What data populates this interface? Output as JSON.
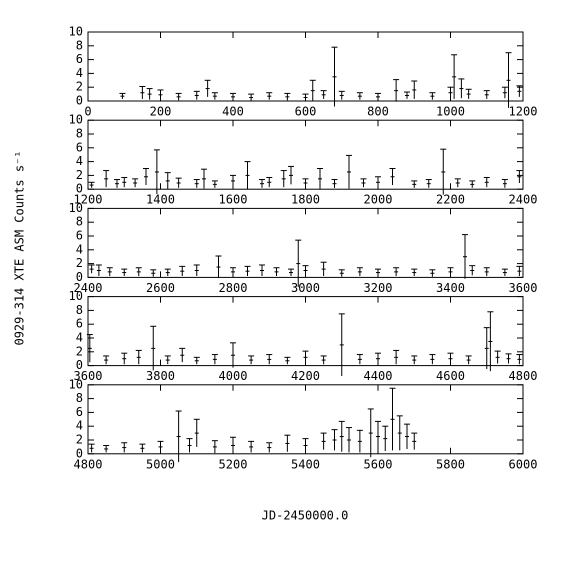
{
  "ylabel": "0929-314 XTE ASM Counts s⁻¹",
  "xlabel": "JD-2450000.0",
  "chart_data": [
    {
      "type": "errorbar",
      "xlim": [
        0,
        1200
      ],
      "ylim": [
        0,
        10
      ],
      "xticks": [
        0,
        200,
        400,
        600,
        800,
        1000,
        1200
      ],
      "yticks": [
        0,
        2,
        4,
        6,
        8,
        10
      ],
      "x": [
        95,
        150,
        170,
        200,
        250,
        300,
        330,
        350,
        400,
        450,
        500,
        550,
        600,
        620,
        650,
        680,
        700,
        750,
        800,
        850,
        880,
        900,
        950,
        1000,
        1010,
        1030,
        1050,
        1100,
        1150,
        1160,
        1190
      ],
      "values": [
        0.7,
        1.2,
        1.0,
        0.9,
        0.6,
        0.8,
        1.8,
        0.7,
        0.6,
        0.5,
        0.7,
        0.6,
        0.5,
        1.5,
        0.9,
        3.5,
        0.8,
        0.7,
        0.6,
        1.5,
        0.8,
        1.6,
        0.7,
        1.2,
        3.5,
        1.8,
        1.0,
        0.9,
        1.2,
        3.0,
        1.4
      ],
      "errors": [
        0.4,
        0.9,
        0.8,
        0.7,
        0.5,
        0.6,
        1.2,
        0.5,
        0.5,
        0.5,
        0.5,
        0.5,
        0.5,
        1.5,
        0.6,
        4.3,
        0.6,
        0.5,
        0.5,
        1.6,
        0.5,
        1.3,
        0.5,
        0.8,
        3.2,
        1.4,
        0.7,
        0.6,
        0.8,
        4.0,
        0.8
      ]
    },
    {
      "type": "errorbar",
      "xlim": [
        1200,
        2400
      ],
      "ylim": [
        0,
        10
      ],
      "xticks": [
        1200,
        1400,
        1600,
        1800,
        2000,
        2200,
        2400
      ],
      "yticks": [
        0,
        2,
        4,
        6,
        8,
        10
      ],
      "x": [
        1210,
        1250,
        1280,
        1300,
        1330,
        1360,
        1390,
        1420,
        1450,
        1500,
        1520,
        1550,
        1600,
        1640,
        1680,
        1700,
        1740,
        1760,
        1800,
        1840,
        1880,
        1920,
        1960,
        2000,
        2040,
        2100,
        2140,
        2180,
        2220,
        2260,
        2300,
        2350,
        2390
      ],
      "values": [
        0.6,
        1.5,
        0.8,
        1.0,
        0.9,
        1.8,
        2.5,
        1.2,
        0.9,
        0.8,
        1.5,
        0.7,
        1.2,
        2.0,
        0.8,
        1.0,
        1.5,
        2.0,
        0.9,
        1.5,
        0.8,
        2.5,
        0.9,
        1.0,
        1.8,
        0.7,
        0.8,
        2.5,
        0.9,
        0.7,
        1.0,
        0.8,
        1.8
      ],
      "errors": [
        0.4,
        1.2,
        0.6,
        0.7,
        0.6,
        1.2,
        3.2,
        1.2,
        0.7,
        0.6,
        1.4,
        0.5,
        0.8,
        2.0,
        0.6,
        0.7,
        1.2,
        1.3,
        0.6,
        1.5,
        0.6,
        2.4,
        0.6,
        0.8,
        1.2,
        0.5,
        0.6,
        3.3,
        0.6,
        0.5,
        0.7,
        0.6,
        0.9
      ]
    },
    {
      "type": "errorbar",
      "xlim": [
        2400,
        3600
      ],
      "ylim": [
        0,
        10
      ],
      "xticks": [
        2400,
        2600,
        2800,
        3000,
        3200,
        3400,
        3600
      ],
      "yticks": [
        0,
        2,
        4,
        6,
        8,
        10
      ],
      "x": [
        2410,
        2430,
        2460,
        2500,
        2540,
        2580,
        2620,
        2660,
        2700,
        2760,
        2800,
        2840,
        2880,
        2920,
        2960,
        2980,
        3000,
        3050,
        3100,
        3150,
        3200,
        3250,
        3300,
        3350,
        3400,
        3440,
        3460,
        3500,
        3550,
        3590
      ],
      "values": [
        1.2,
        1.0,
        0.8,
        0.7,
        0.8,
        0.6,
        0.7,
        0.9,
        1.0,
        1.5,
        0.8,
        0.9,
        1.0,
        0.8,
        0.7,
        2.0,
        1.0,
        1.2,
        0.6,
        0.8,
        0.7,
        0.8,
        0.7,
        0.6,
        0.8,
        3.0,
        1.0,
        0.8,
        0.7,
        0.9
      ],
      "errors": [
        0.6,
        0.8,
        0.6,
        0.5,
        0.6,
        0.5,
        0.5,
        0.7,
        0.8,
        1.6,
        0.6,
        0.7,
        0.8,
        0.6,
        0.5,
        3.4,
        0.7,
        1.0,
        0.5,
        0.6,
        0.5,
        0.6,
        0.5,
        0.5,
        0.6,
        3.2,
        0.7,
        0.6,
        0.5,
        0.7
      ]
    },
    {
      "type": "errorbar",
      "xlim": [
        3600,
        4800
      ],
      "ylim": [
        0,
        10
      ],
      "xticks": [
        3600,
        3800,
        4000,
        4200,
        4400,
        4600,
        4800
      ],
      "yticks": [
        0,
        2,
        4,
        6,
        8,
        10
      ],
      "x": [
        3605,
        3650,
        3700,
        3740,
        3780,
        3820,
        3860,
        3900,
        3950,
        4000,
        4050,
        4100,
        4150,
        4200,
        4250,
        4300,
        4350,
        4400,
        4450,
        4500,
        4550,
        4600,
        4650,
        4700,
        4710,
        4730,
        4760,
        4790
      ],
      "values": [
        2.5,
        0.8,
        1.0,
        1.2,
        2.5,
        0.8,
        1.5,
        0.7,
        0.9,
        1.5,
        0.8,
        0.9,
        0.7,
        1.2,
        0.8,
        3.0,
        0.9,
        1.0,
        1.2,
        0.8,
        0.9,
        1.0,
        0.8,
        2.5,
        3.5,
        1.2,
        1.0,
        0.9
      ],
      "errors": [
        2.0,
        0.6,
        0.8,
        1.0,
        3.2,
        0.6,
        1.0,
        0.5,
        0.7,
        1.8,
        0.6,
        0.7,
        0.5,
        0.9,
        0.6,
        4.5,
        0.7,
        0.8,
        1.0,
        0.6,
        0.7,
        0.8,
        0.6,
        3.0,
        4.3,
        0.9,
        0.7,
        0.7
      ]
    },
    {
      "type": "errorbar",
      "xlim": [
        4800,
        6000
      ],
      "ylim": [
        0,
        10
      ],
      "xticks": [
        4800,
        5000,
        5200,
        5400,
        5600,
        5800,
        6000
      ],
      "yticks": [
        0,
        2,
        4,
        6,
        8,
        10
      ],
      "x": [
        4810,
        4850,
        4900,
        4950,
        5000,
        5050,
        5080,
        5100,
        5150,
        5200,
        5250,
        5300,
        5350,
        5400,
        5450,
        5480,
        5500,
        5520,
        5550,
        5580,
        5600,
        5620,
        5640,
        5660,
        5680,
        5700
      ],
      "values": [
        0.8,
        0.7,
        0.9,
        0.8,
        1.0,
        2.5,
        1.2,
        3.0,
        1.0,
        1.2,
        1.0,
        0.9,
        1.5,
        1.2,
        1.8,
        2.0,
        2.5,
        2.0,
        1.8,
        3.0,
        2.5,
        2.2,
        5.0,
        3.0,
        2.5,
        1.8
      ],
      "errors": [
        0.6,
        0.5,
        0.7,
        0.6,
        0.8,
        3.7,
        1.0,
        2.0,
        0.9,
        1.2,
        0.8,
        0.7,
        1.2,
        1.0,
        1.2,
        1.5,
        2.2,
        1.8,
        1.6,
        3.5,
        2.2,
        1.8,
        4.5,
        2.5,
        1.8,
        1.2
      ]
    }
  ]
}
